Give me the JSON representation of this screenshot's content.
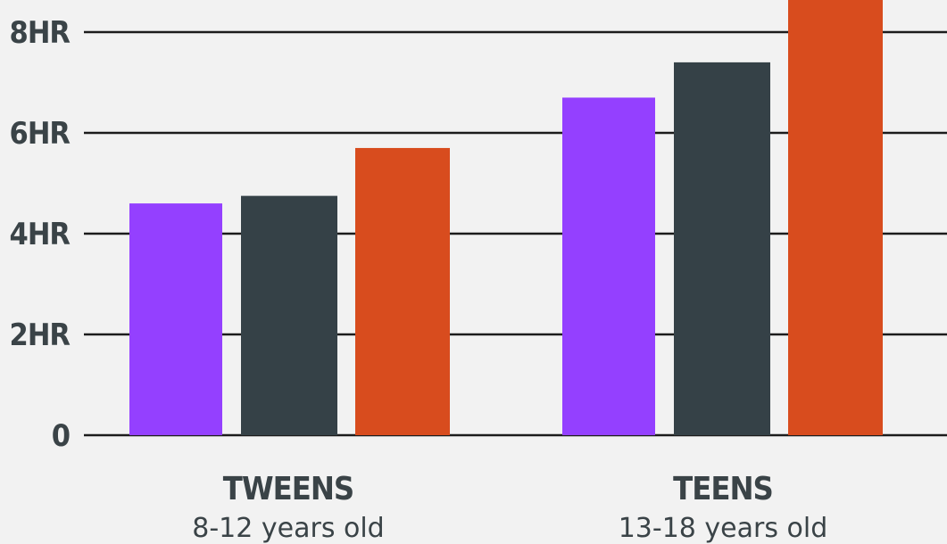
{
  "chart_data": {
    "type": "bar",
    "title": "",
    "xlabel": "",
    "ylabel": "",
    "ylim": [
      0,
      8.6
    ],
    "yticks": [
      {
        "value": 0,
        "label": "0"
      },
      {
        "value": 2,
        "label": "2HR"
      },
      {
        "value": 4,
        "label": "4HR"
      },
      {
        "value": 6,
        "label": "6HR"
      },
      {
        "value": 8,
        "label": "8HR"
      }
    ],
    "categories": [
      {
        "name": "TWEENS",
        "sublabel": "8-12 years old"
      },
      {
        "name": "TEENS",
        "sublabel": "13-18 years old"
      }
    ],
    "series": [
      {
        "color": "#9440ff",
        "values": [
          4.6,
          6.7
        ]
      },
      {
        "color": "#354147",
        "values": [
          4.75,
          7.4
        ]
      },
      {
        "color": "#d84c1e",
        "values": [
          5.7,
          8.65
        ]
      }
    ],
    "grid": true,
    "legend": "none"
  }
}
